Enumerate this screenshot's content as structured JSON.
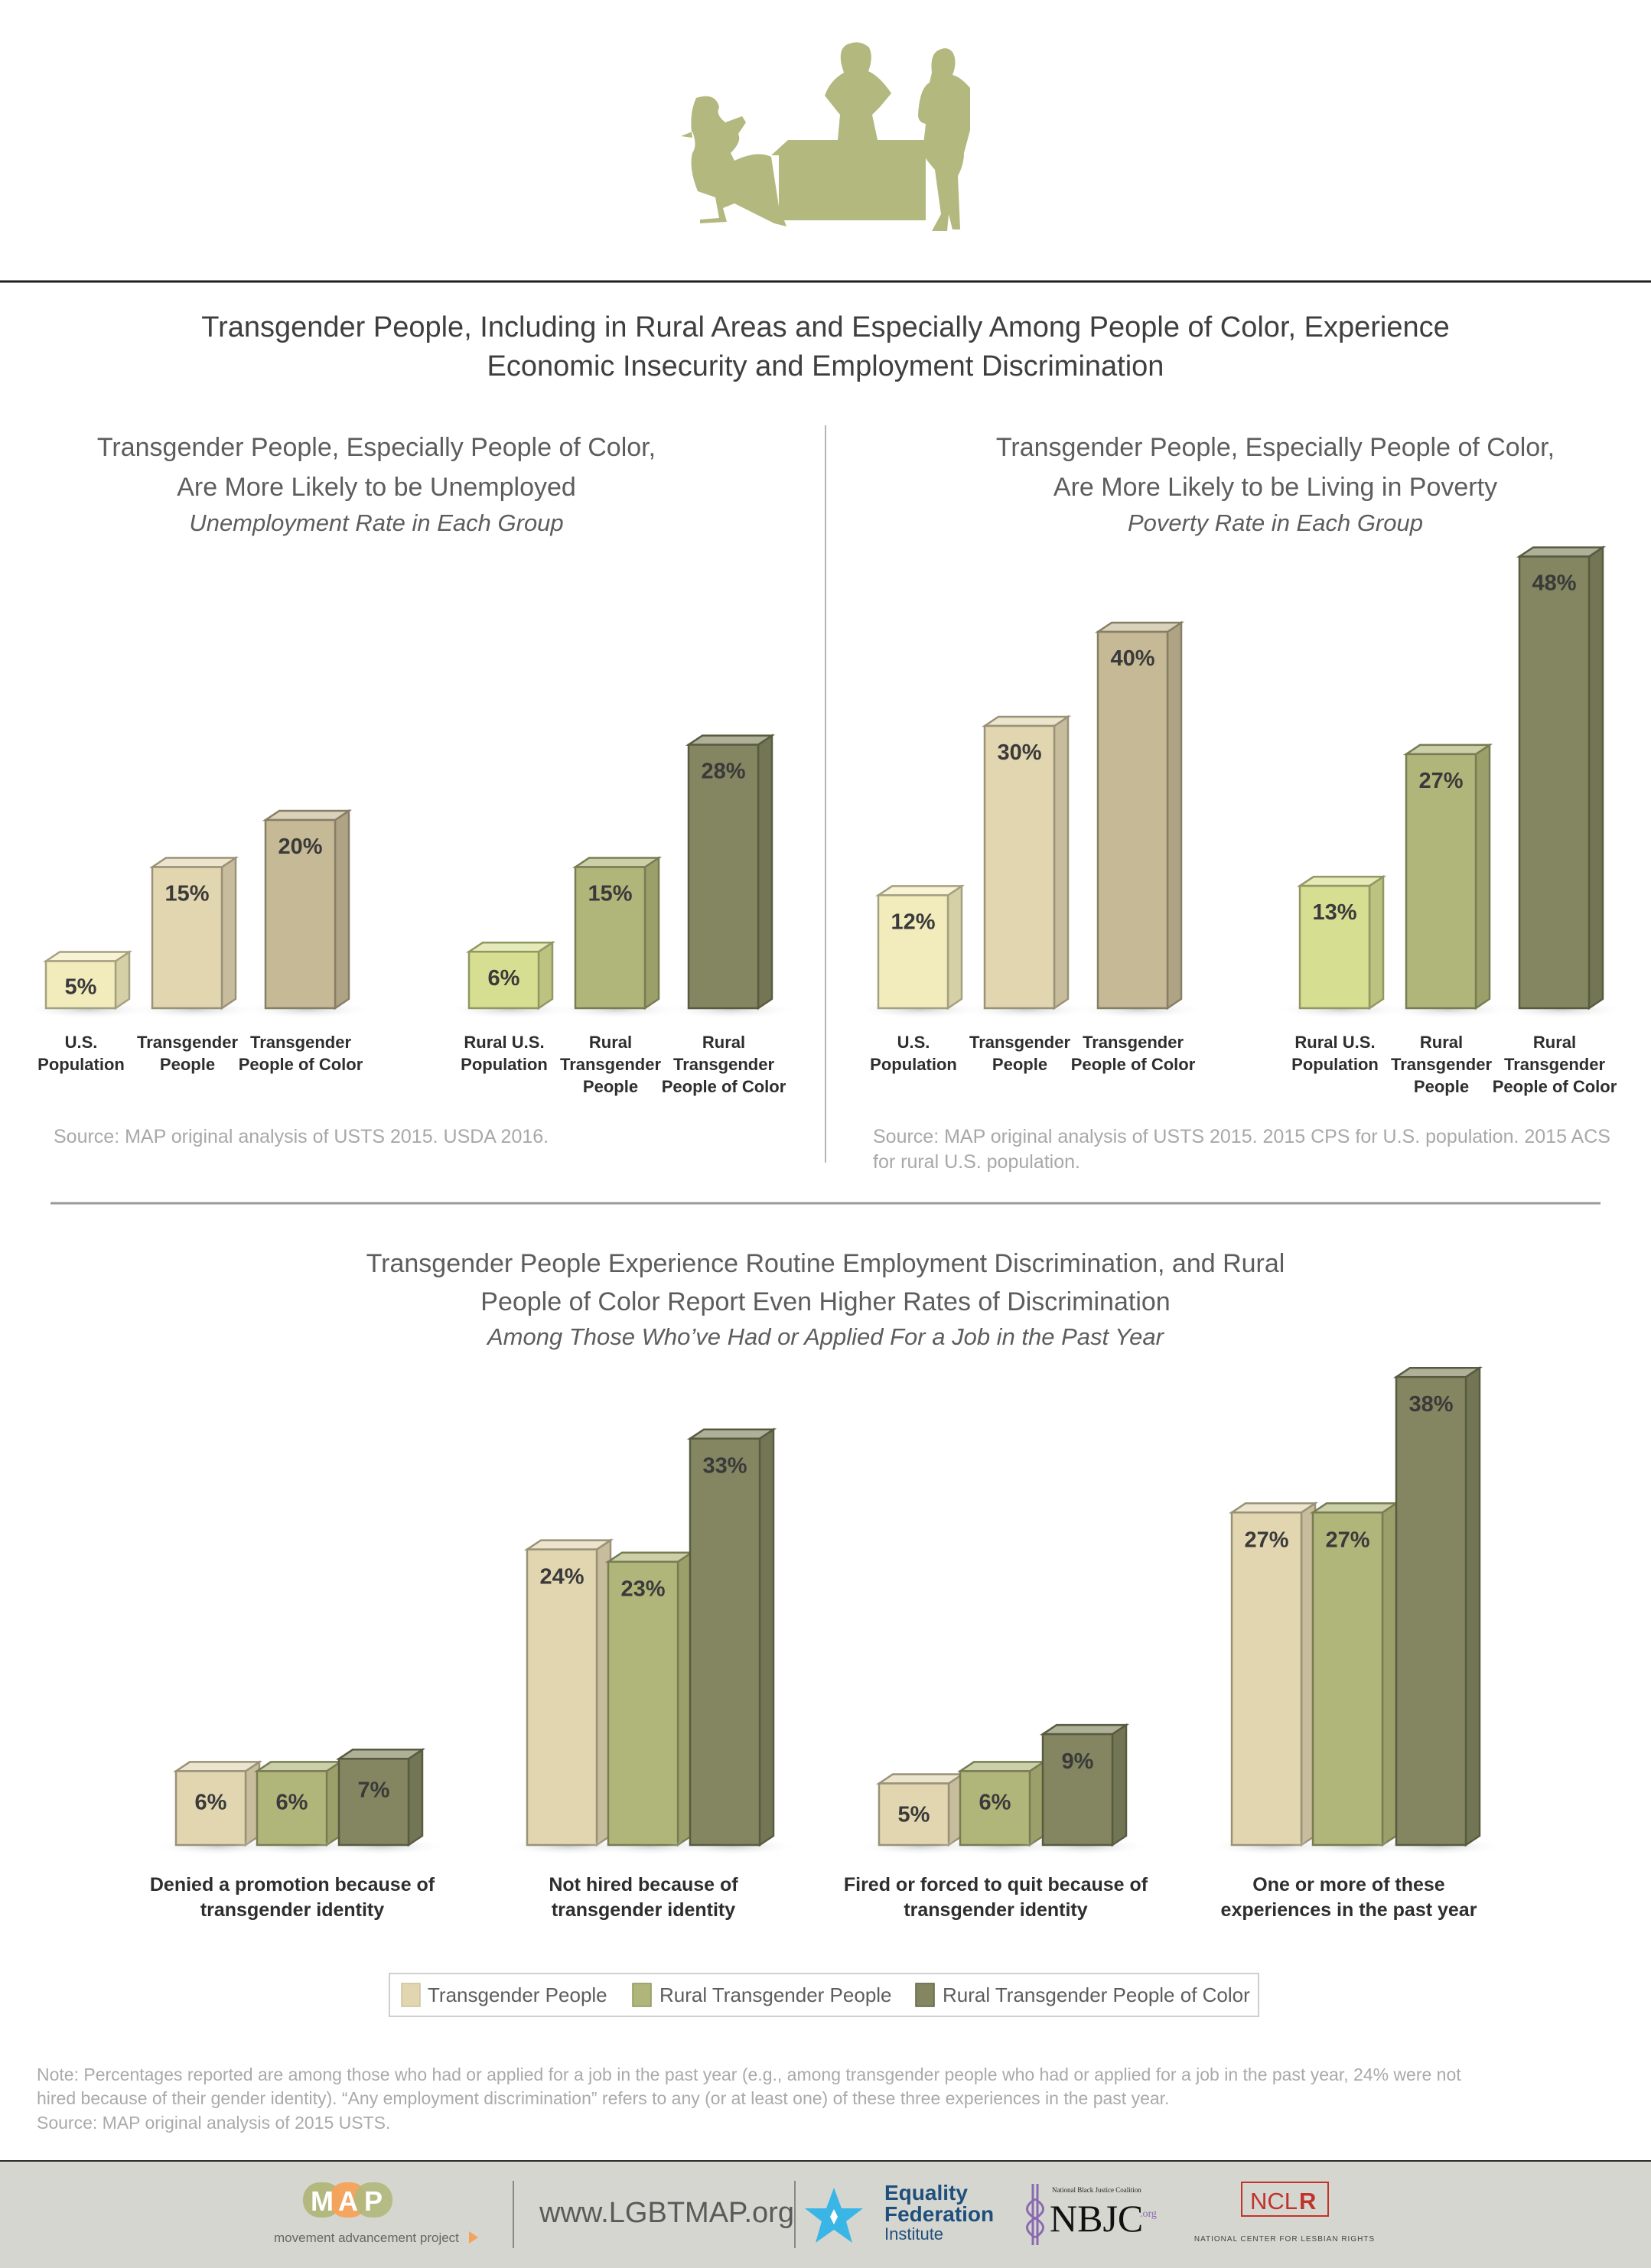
{
  "header": {
    "illustration": "office-silhouette-icon",
    "main_title_lines": [
      "Transgender People, Including in Rural Areas and Especially Among People of Color, Experience",
      "Economic Insecurity and Employment Discrimination"
    ]
  },
  "colors": {
    "silhouette": "#b2b87e",
    "us_population": "#f2ecbd",
    "transgender_people": "#e2d6b0",
    "transgender_poc": "#c6b996",
    "rural_us_population": "#d6de92",
    "rural_transgender_people": "#b0b67a",
    "rural_transgender_poc": "#838660",
    "footer_bg": "#d6d6d0"
  },
  "chart_data": [
    {
      "type": "bar",
      "title": "Transgender People, Especially People of Color, Are More Likely to be Unemployed",
      "title_lines": [
        "Transgender People, Especially People of Color,",
        "Are More Likely to be Unemployed"
      ],
      "subtitle": "Unemployment Rate in Each Group",
      "categories": [
        "U.S. Population",
        "Transgender People",
        "Transgender People of Color",
        "Rural U.S. Population",
        "Rural Transgender People",
        "Rural Transgender People of Color"
      ],
      "category_lines": [
        [
          "U.S.",
          "Population"
        ],
        [
          "Transgender",
          "People"
        ],
        [
          "Transgender",
          "People of Color"
        ],
        [
          "Rural U.S.",
          "Population"
        ],
        [
          "Rural",
          "Transgender",
          "People"
        ],
        [
          "Rural",
          "Transgender",
          "People of Color"
        ]
      ],
      "values": [
        5,
        15,
        20,
        6,
        15,
        28
      ],
      "labels": [
        "5%",
        "15%",
        "20%",
        "6%",
        "15%",
        "28%"
      ],
      "unit": "%",
      "xlabel": "",
      "ylabel": "",
      "grid": false,
      "source": "Source: MAP original analysis of USTS 2015. USDA 2016."
    },
    {
      "type": "bar",
      "title": "Transgender People, Especially People of Color, Are More Likely to be Living in Poverty",
      "title_lines": [
        "Transgender People, Especially People of Color,",
        "Are More Likely to be Living in Poverty"
      ],
      "subtitle": "Poverty Rate in Each Group",
      "categories": [
        "U.S. Population",
        "Transgender People",
        "Transgender People of Color",
        "Rural U.S. Population",
        "Rural Transgender People",
        "Rural Transgender People of Color"
      ],
      "category_lines": [
        [
          "U.S.",
          "Population"
        ],
        [
          "Transgender",
          "People"
        ],
        [
          "Transgender",
          "People of Color"
        ],
        [
          "Rural U.S.",
          "Population"
        ],
        [
          "Rural",
          "Transgender",
          "People"
        ],
        [
          "Rural",
          "Transgender",
          "People of Color"
        ]
      ],
      "values": [
        12,
        30,
        40,
        13,
        27,
        48
      ],
      "labels": [
        "12%",
        "30%",
        "40%",
        "13%",
        "27%",
        "48%"
      ],
      "unit": "%",
      "xlabel": "",
      "ylabel": "",
      "grid": false,
      "source_lines": [
        "Source: MAP original analysis of USTS 2015. 2015 CPS for U.S. population. 2015 ACS",
        "for rural U.S. population."
      ]
    },
    {
      "type": "bar",
      "title": "Transgender People Experience Routine Employment Discrimination, and Rural People of Color Report Even Higher Rates of Discrimination",
      "title_lines": [
        "Transgender People Experience Routine Employment Discrimination, and Rural",
        "People of Color Report Even Higher Rates of Discrimination"
      ],
      "subtitle": "Among Those Who’ve Had or Applied For a Job in the Past Year",
      "categories": [
        "Denied a promotion because of transgender identity",
        "Not hired because of transgender identity",
        "Fired or forced to quit because of transgender identity",
        "One or more of these experiences in the past year"
      ],
      "category_lines": [
        [
          "Denied a promotion because of",
          "transgender identity"
        ],
        [
          "Not hired because of",
          "transgender identity"
        ],
        [
          "Fired or forced to quit because of",
          "transgender identity"
        ],
        [
          "One or more of these",
          "experiences in the past year"
        ]
      ],
      "series": [
        {
          "name": "Transgender People",
          "values": [
            6,
            24,
            5,
            27
          ],
          "labels": [
            "6%",
            "24%",
            "5%",
            "27%"
          ]
        },
        {
          "name": "Rural Transgender People",
          "values": [
            6,
            23,
            6,
            27
          ],
          "labels": [
            "6%",
            "23%",
            "6%",
            "27%"
          ]
        },
        {
          "name": "Rural Transgender People of Color",
          "values": [
            7,
            33,
            9,
            38
          ],
          "labels": [
            "7%",
            "33%",
            "9%",
            "38%"
          ]
        }
      ],
      "unit": "%",
      "legend": "bottom",
      "grid": false
    }
  ],
  "notes": {
    "lines": [
      "Note: Percentages reported are among those who had or applied for a job in the past year (e.g., among transgender people who had or applied for a job in the past year, 24% were not",
      "hired because of their gender identity). “Any employment discrimination” refers to any (or at least one) of these three experiences in the past year.",
      "Source: MAP original analysis of 2015 USTS."
    ]
  },
  "footer": {
    "map_logo_letters": [
      "M",
      "A",
      "P"
    ],
    "map_tagline": "movement advancement project",
    "url": "www.LGBTMAP.org",
    "partners": {
      "equality_federation": [
        "Equality",
        "Federation",
        "Institute"
      ],
      "nbjc_small": "National Black Justice Coalition",
      "nbjc_big": "NBJC",
      "nbjc_org": ".org",
      "nclr_logo": "NCL",
      "nclr_logo_r": "R",
      "nclr_name": "NATIONAL CENTER FOR LESBIAN RIGHTS"
    }
  }
}
